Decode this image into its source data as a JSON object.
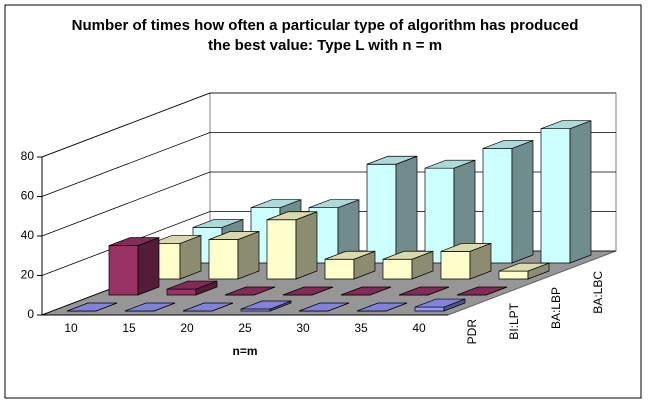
{
  "chart_data": {
    "type": "bar3d",
    "title": "Number of times how often a particular type of algorithm has produced the best value: Type L with n = m",
    "x_label": "n=m",
    "categories": [
      "10",
      "15",
      "20",
      "25",
      "30",
      "35",
      "40"
    ],
    "series": [
      {
        "name": "PDR",
        "color": "#9999ff",
        "values": [
          0,
          0,
          0,
          1,
          0,
          0,
          2
        ]
      },
      {
        "name": "BI:LPT",
        "color": "#993366",
        "values": [
          25,
          3,
          0,
          0,
          0,
          0,
          0
        ]
      },
      {
        "name": "BA:LBP",
        "color": "#ffffcc",
        "values": [
          18,
          20,
          30,
          10,
          10,
          14,
          4
        ]
      },
      {
        "name": "BA:LBC",
        "color": "#ccffff",
        "values": [
          18,
          28,
          28,
          50,
          48,
          58,
          68
        ]
      }
    ],
    "ylim": [
      0,
      80
    ],
    "yticks": [
      0,
      20,
      40,
      60,
      80
    ],
    "grid": true
  }
}
